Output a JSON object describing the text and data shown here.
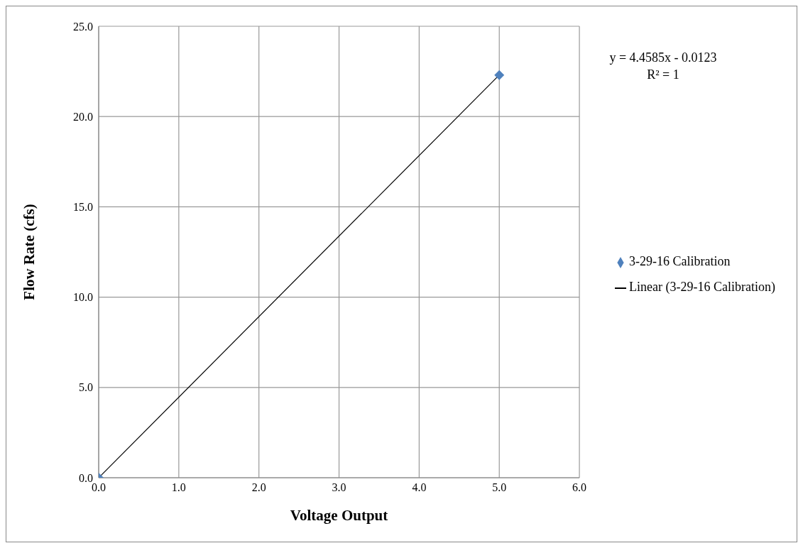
{
  "chart_data": {
    "type": "scatter",
    "xlabel": "Voltage Output",
    "ylabel": "Flow Rate (cfs)",
    "x": [
      0,
      5
    ],
    "series": [
      {
        "name": "3-29-16 Calibration",
        "color": "#4f81bd",
        "values": [
          0,
          22.3
        ],
        "marker": "diamond"
      },
      {
        "name": "Linear (3-29-16 Calibration)",
        "type": "line",
        "color": "#000000",
        "x": [
          0,
          5
        ],
        "values": [
          0,
          22.3
        ],
        "marker": "none"
      }
    ],
    "xlim": [
      0,
      6
    ],
    "xticks": [
      {
        "value": 0,
        "label": "0.0"
      },
      {
        "value": 1,
        "label": "1.0"
      },
      {
        "value": 2,
        "label": "2.0"
      },
      {
        "value": 3,
        "label": "3.0"
      },
      {
        "value": 4,
        "label": "4.0"
      },
      {
        "value": 5,
        "label": "5.0"
      },
      {
        "value": 6,
        "label": "6.0"
      }
    ],
    "ylim": [
      0,
      25
    ],
    "yticks": [
      {
        "value": 0,
        "label": "0.0"
      },
      {
        "value": 5,
        "label": "5.0"
      },
      {
        "value": 10,
        "label": "10.0"
      },
      {
        "value": 15,
        "label": "15.0"
      },
      {
        "value": 20,
        "label": "20.0"
      },
      {
        "value": 25,
        "label": "25.0"
      }
    ],
    "grid": true,
    "legend": "right",
    "annotations": [
      "y = 4.4585x  - 0.0123",
      "R² = 1"
    ]
  }
}
